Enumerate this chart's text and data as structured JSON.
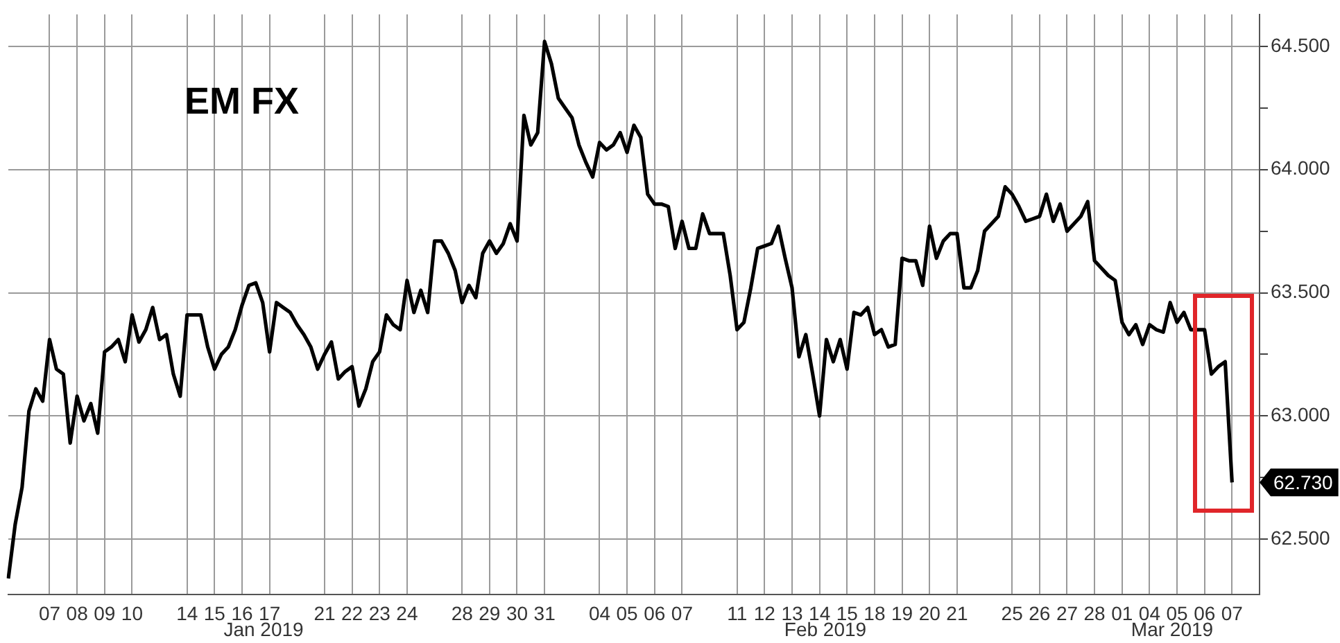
{
  "chart_data": {
    "type": "line",
    "title": "EM FX",
    "categories": [
      null,
      null,
      null,
      null,
      null,
      null,
      "07",
      null,
      null,
      null,
      "08",
      null,
      null,
      null,
      "09",
      null,
      null,
      null,
      "10",
      null,
      null,
      null,
      null,
      null,
      null,
      null,
      "14",
      null,
      null,
      null,
      "15",
      null,
      null,
      null,
      "16",
      null,
      null,
      null,
      "17",
      null,
      null,
      null,
      null,
      null,
      null,
      null,
      "21",
      null,
      null,
      null,
      "22",
      null,
      null,
      null,
      "23",
      null,
      null,
      null,
      "24",
      null,
      null,
      null,
      null,
      null,
      null,
      null,
      "28",
      null,
      null,
      null,
      "29",
      null,
      null,
      null,
      "30",
      null,
      null,
      null,
      "31",
      null,
      null,
      null,
      null,
      null,
      null,
      null,
      "04",
      null,
      null,
      null,
      "05",
      null,
      null,
      null,
      "06",
      null,
      null,
      null,
      "07",
      null,
      null,
      null,
      null,
      null,
      null,
      null,
      "11",
      null,
      null,
      null,
      "12",
      null,
      null,
      null,
      "13",
      null,
      null,
      null,
      "14",
      null,
      null,
      null,
      "15",
      null,
      null,
      null,
      "18",
      null,
      null,
      null,
      "19",
      null,
      null,
      null,
      "20",
      null,
      null,
      null,
      "21",
      null,
      null,
      null,
      null,
      null,
      null,
      null,
      "25",
      null,
      null,
      null,
      "26",
      null,
      null,
      null,
      "27",
      null,
      null,
      null,
      "28",
      null,
      null,
      null,
      "01",
      null,
      null,
      null,
      "04",
      null,
      null,
      null,
      "05",
      null,
      null,
      null,
      "06",
      null,
      null,
      null,
      "07",
      null,
      null,
      null,
      null
    ],
    "series": [
      {
        "color": "#000000",
        "values": [
          62.34,
          62.56,
          62.71,
          63.02,
          63.11,
          63.06,
          63.31,
          63.19,
          63.17,
          62.89,
          63.08,
          62.98,
          63.05,
          62.93,
          63.26,
          63.28,
          63.31,
          63.22,
          63.41,
          63.3,
          63.35,
          63.44,
          63.31,
          63.33,
          63.17,
          63.08,
          63.41,
          63.41,
          63.41,
          63.28,
          63.19,
          63.25,
          63.28,
          63.35,
          63.45,
          63.53,
          63.54,
          63.46,
          63.26,
          63.46,
          63.44,
          63.42,
          63.37,
          63.33,
          63.28,
          63.19,
          63.25,
          63.3,
          63.15,
          63.18,
          63.2,
          63.04,
          63.11,
          63.22,
          63.26,
          63.41,
          63.37,
          63.35,
          63.55,
          63.42,
          63.51,
          63.42,
          63.71,
          63.71,
          63.66,
          63.59,
          63.46,
          63.53,
          63.48,
          63.66,
          63.71,
          63.66,
          63.7,
          63.78,
          63.71,
          64.22,
          64.1,
          64.15,
          64.52,
          64.43,
          64.29,
          64.25,
          64.21,
          64.1,
          64.03,
          63.97,
          64.11,
          64.08,
          64.1,
          64.15,
          64.07,
          64.18,
          64.13,
          63.9,
          63.86,
          63.86,
          63.85,
          63.68,
          63.79,
          63.68,
          63.68,
          63.82,
          63.74,
          63.74,
          63.74,
          63.57,
          63.35,
          63.38,
          63.52,
          63.68,
          63.69,
          63.7,
          63.77,
          63.64,
          63.52,
          63.24,
          63.33,
          63.17,
          63.0,
          63.31,
          63.22,
          63.31,
          63.19,
          63.42,
          63.41,
          63.44,
          63.33,
          63.35,
          63.28,
          63.29,
          63.64,
          63.63,
          63.63,
          63.53,
          63.77,
          63.64,
          63.71,
          63.74,
          63.74,
          63.52,
          63.52,
          63.59,
          63.75,
          63.78,
          63.81,
          63.93,
          63.9,
          63.85,
          63.79,
          63.8,
          63.81,
          63.9,
          63.79,
          63.86,
          63.75,
          63.78,
          63.81,
          63.87,
          63.63,
          63.6,
          63.57,
          63.55,
          63.38,
          63.33,
          63.37,
          63.29,
          63.37,
          63.35,
          63.34,
          63.46,
          63.38,
          63.42,
          63.35,
          63.35,
          63.35,
          63.17,
          63.2,
          63.22,
          62.73,
          null,
          null,
          null,
          null
        ]
      }
    ],
    "ylim": [
      62.275,
      64.63
    ],
    "yticks": [
      {
        "value": 62.5,
        "label": "62.500"
      },
      {
        "value": 62.75,
        "label": null
      },
      {
        "value": 63,
        "label": "63.000"
      },
      {
        "value": 63.25,
        "label": null
      },
      {
        "value": 63.5,
        "label": "63.500"
      },
      {
        "value": 63.75,
        "label": null
      },
      {
        "value": 64,
        "label": "64.000"
      },
      {
        "value": 64.25,
        "label": null
      },
      {
        "value": 64.5,
        "label": "64.500"
      }
    ],
    "annotations": [
      "Jan 2019",
      "Feb 2019",
      "Mar 2019",
      "62.730"
    ],
    "grid": true,
    "marker": "none",
    "line_style": "solid"
  }
}
